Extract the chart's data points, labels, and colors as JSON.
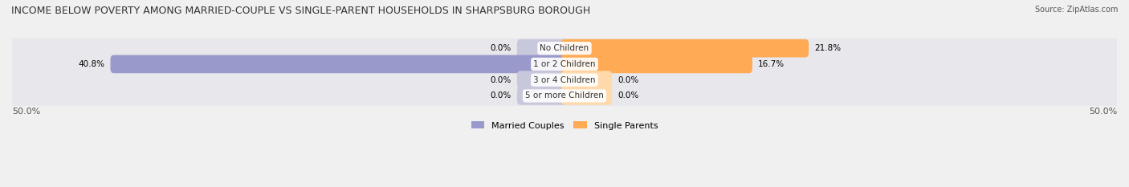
{
  "title": "INCOME BELOW POVERTY AMONG MARRIED-COUPLE VS SINGLE-PARENT HOUSEHOLDS IN SHARPSBURG BOROUGH",
  "source": "Source: ZipAtlas.com",
  "categories": [
    "No Children",
    "1 or 2 Children",
    "3 or 4 Children",
    "5 or more Children"
  ],
  "married_values": [
    0.0,
    40.8,
    0.0,
    0.0
  ],
  "single_values": [
    21.8,
    16.7,
    0.0,
    0.0
  ],
  "married_color": "#9999cc",
  "single_color": "#ffaa55",
  "married_label": "Married Couples",
  "single_label": "Single Parents",
  "xlim": 50.0,
  "axis_label_left": "50.0%",
  "axis_label_right": "50.0%",
  "bg_color": "#f0f0f0",
  "bar_bg_color": "#e0e0e8",
  "title_fontsize": 9,
  "source_fontsize": 7,
  "label_fontsize": 7.5,
  "tick_fontsize": 8,
  "legend_fontsize": 8
}
